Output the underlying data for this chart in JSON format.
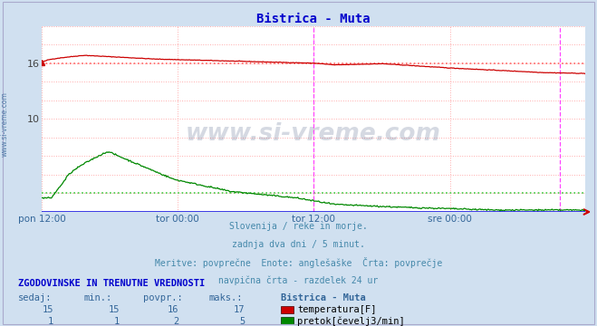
{
  "title": "Bistrica - Muta",
  "bg_color": "#d0e0f0",
  "plot_bg_color": "#ffffff",
  "grid_color": "#ffaaaa",
  "xlim_max": 575,
  "ylim": [
    0,
    20
  ],
  "xtick_positions": [
    0,
    144,
    288,
    432,
    575
  ],
  "xtick_labels": [
    "pon 12:00",
    "tor 00:00",
    "tor 12:00",
    "sre 00:00",
    ""
  ],
  "ytick_positions": [
    10,
    16
  ],
  "ytick_labels": [
    "10",
    "16"
  ],
  "vline1_x": 288,
  "vline2_x": 548,
  "vline_color": "#ff44ff",
  "avg_line_temp_y": 16.0,
  "avg_line_flow_y": 2.0,
  "avg_line_color_temp": "#ff6666",
  "avg_line_color_flow": "#44cc44",
  "temp_color": "#cc0000",
  "flow_color": "#008800",
  "blue_bottom_color": "#0000dd",
  "red_arrow_color": "#cc0000",
  "watermark_text": "www.si-vreme.com",
  "watermark_color": "#1a3060",
  "side_label": "www.si-vreme.com",
  "side_label_color": "#336699",
  "title_color": "#0000cc",
  "subtitle_lines": [
    "Slovenija / reke in morje.",
    "zadnja dva dni / 5 minut.",
    "Meritve: povprečne  Enote: anglešaške  Črta: povprečje",
    "navpična črta - razdelek 24 ur"
  ],
  "subtitle_color": "#4488aa",
  "table_header": "ZGODOVINSKE IN TRENUTNE VREDNOSTI",
  "table_header_color": "#0000cc",
  "table_col_color": "#336699",
  "table_cols": [
    "sedaj:",
    "min.:",
    "povpr.:",
    "maks.:",
    "Bistrica - Muta"
  ],
  "table_temp_vals": [
    "15",
    "15",
    "16",
    "17"
  ],
  "table_temp_label": "temperatura[F]",
  "table_temp_color": "#cc0000",
  "table_flow_vals": [
    "1",
    "1",
    "2",
    "5"
  ],
  "table_flow_label": "pretok[čevelj3/min]",
  "table_flow_color": "#008800",
  "N": 576
}
